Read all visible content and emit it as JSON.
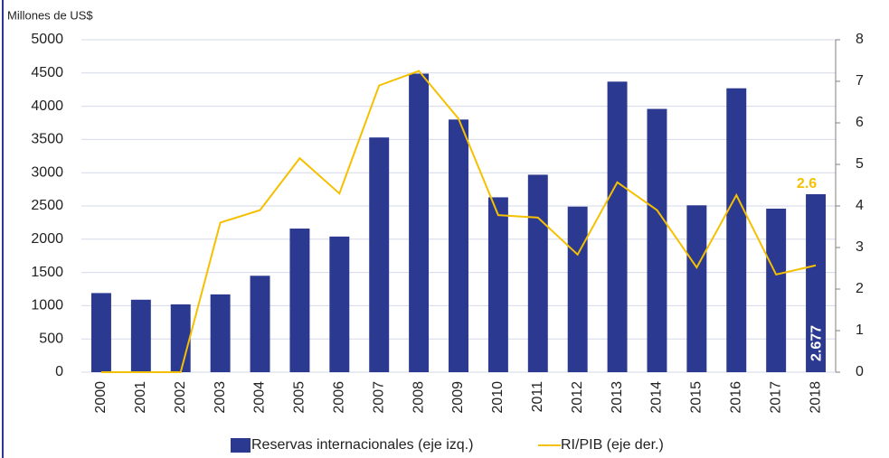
{
  "chart_data": {
    "type": "bar_line",
    "ylabel": "Millones de US$",
    "categories": [
      "2000",
      "2001",
      "2002",
      "2003",
      "2004",
      "2005",
      "2006",
      "2007",
      "2008",
      "2009",
      "2010",
      "2011",
      "2012",
      "2013",
      "2014",
      "2015",
      "2016",
      "2017",
      "2018"
    ],
    "series": [
      {
        "name": "Reservas internacionales (eje izq.)",
        "type": "bar",
        "color": "#2b3990",
        "values": [
          1190,
          1090,
          1020,
          1170,
          1450,
          2160,
          2040,
          3530,
          4490,
          3800,
          2630,
          2970,
          2490,
          4370,
          3960,
          2510,
          4270,
          2460,
          2677
        ],
        "value_labels": [
          null,
          null,
          null,
          null,
          null,
          null,
          null,
          null,
          null,
          null,
          null,
          null,
          null,
          null,
          null,
          null,
          null,
          null,
          "2.677"
        ]
      },
      {
        "name": "RI/PIB (eje der.)",
        "type": "line",
        "axis": "y2",
        "color": "#f5c000",
        "values": [
          0,
          0,
          0,
          3.6,
          3.9,
          5.15,
          4.3,
          6.9,
          7.25,
          6.1,
          3.78,
          3.72,
          2.83,
          4.57,
          3.9,
          2.52,
          4.26,
          2.35,
          2.57
        ],
        "value_labels": [
          null,
          null,
          null,
          null,
          null,
          null,
          null,
          null,
          null,
          null,
          null,
          null,
          null,
          null,
          null,
          null,
          null,
          null,
          "2.6"
        ]
      }
    ],
    "ylim": [
      0,
      5000
    ],
    "yticks": [
      0,
      500,
      1000,
      1500,
      2000,
      2500,
      3000,
      3500,
      4000,
      4500,
      5000
    ],
    "y2lim": [
      0,
      8
    ],
    "y2ticks": [
      0,
      1,
      2,
      3,
      4,
      5,
      6,
      7,
      8
    ],
    "grid": true
  }
}
